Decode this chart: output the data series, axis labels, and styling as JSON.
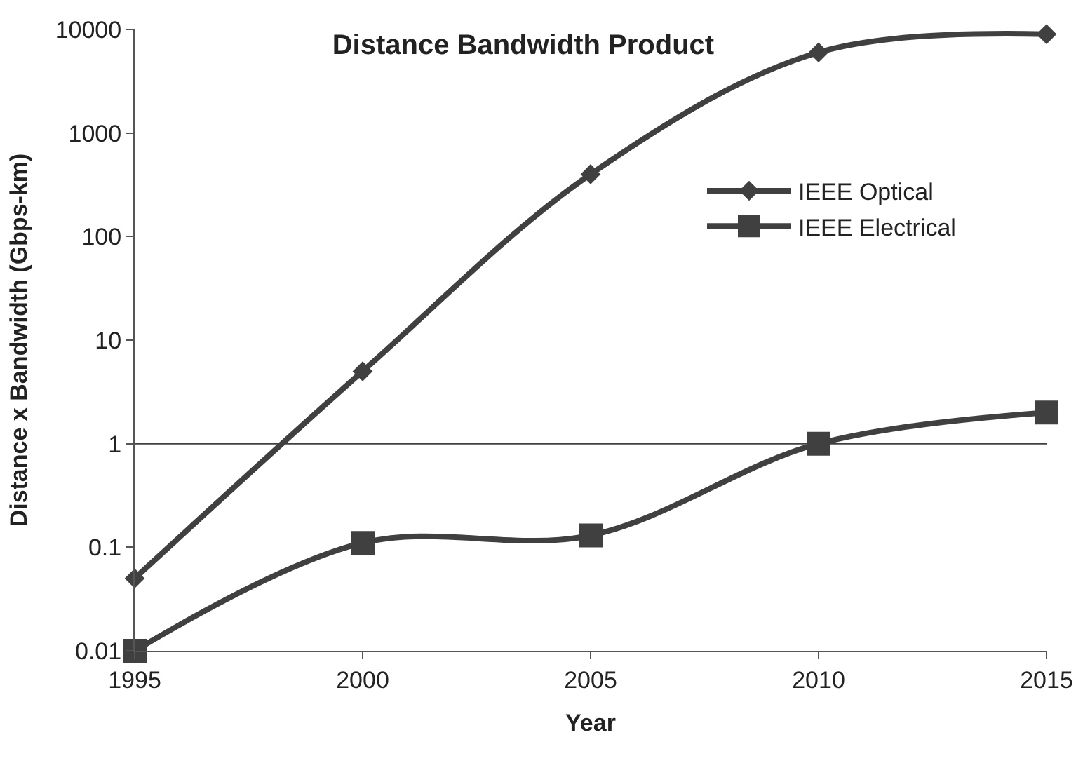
{
  "chart_data": {
    "type": "line",
    "title": "Distance Bandwidth Product",
    "xlabel": "Year",
    "ylabel": "Distance x Bandwidth (Gbps-km)",
    "x": [
      1995,
      2000,
      2005,
      2010,
      2015
    ],
    "series": [
      {
        "name": "IEEE Optical",
        "color": "#404040",
        "marker": "diamond",
        "values": [
          0.05,
          5,
          400,
          6000,
          9000
        ]
      },
      {
        "name": "IEEE Electrical",
        "color": "#404040",
        "marker": "square",
        "values": [
          0.01,
          0.11,
          0.13,
          1,
          2
        ]
      }
    ],
    "log": "y",
    "xlim": [
      1995,
      2015
    ],
    "xticks": [
      1995,
      2000,
      2005,
      2010,
      2015
    ],
    "ylim": [
      0.01,
      10000
    ],
    "yticks": [
      0.01,
      0.1,
      1,
      10,
      100,
      1000,
      10000
    ],
    "ref_lines": [
      {
        "axis": "y",
        "value": 1,
        "color": "#404040"
      }
    ],
    "legend": "right",
    "line_style": "solid"
  }
}
